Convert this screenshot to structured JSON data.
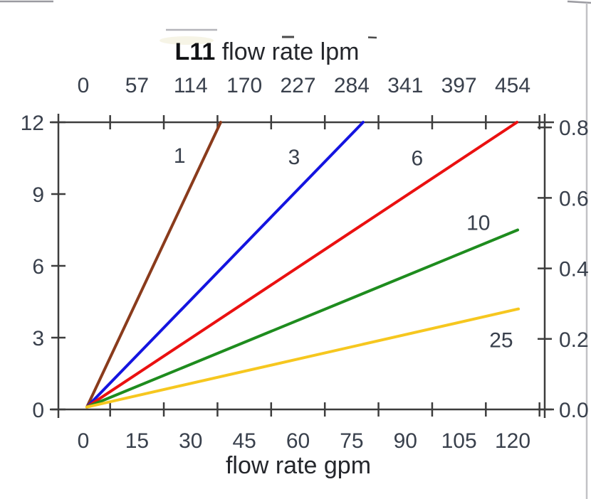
{
  "page": {
    "background": "#ffffff"
  },
  "colors": {
    "axis": "#3d3d3d",
    "tick_text": "#39404c",
    "title_model": "#101114",
    "title_text": "#24262b",
    "page_border": "#c2c2c6",
    "artifact_line": "#9a9aa0",
    "artifact_dash": "#4a4a4a"
  },
  "chart_data": {
    "type": "line",
    "title": {
      "model": "L11",
      "text": " flow rate lpm"
    },
    "axes": {
      "top": {
        "unit": "lpm",
        "tick_labels": [
          "0",
          "57",
          "114",
          "170",
          "227",
          "284",
          "341",
          "397",
          "454"
        ]
      },
      "bottom": {
        "title": "flow rate gpm",
        "unit": "gpm",
        "tick_labels": [
          "0",
          "15",
          "30",
          "45",
          "60",
          "75",
          "90",
          "105",
          "120"
        ],
        "range": [
          0,
          120
        ]
      },
      "left": {
        "tick_labels": [
          "12",
          "9",
          "6",
          "3",
          "0"
        ],
        "range": [
          0,
          12
        ]
      },
      "right": {
        "tick_labels": [
          "0.8",
          "0.6",
          "0.4",
          "0.2",
          "0.0"
        ],
        "range": [
          0,
          0.8
        ]
      }
    },
    "grid": false,
    "legend": "inline-labels",
    "series": [
      {
        "label": "1",
        "color": "#8a3b1c",
        "x": [
          1,
          38.4
        ],
        "y": [
          0.1,
          12
        ],
        "label_at": {
          "gpm": 26.9,
          "psi": 10.6
        }
      },
      {
        "label": "3",
        "color": "#1414e0",
        "x": [
          1,
          78.2
        ],
        "y": [
          0.1,
          12
        ],
        "label_at": {
          "gpm": 58.9,
          "psi": 10.55
        }
      },
      {
        "label": "6",
        "color": "#ea1010",
        "x": [
          1,
          121.2
        ],
        "y": [
          0.1,
          12
        ],
        "label_at": {
          "gpm": 93.3,
          "psi": 10.5
        }
      },
      {
        "label": "10",
        "color": "#1e8c1e",
        "x": [
          1,
          121.4
        ],
        "y": [
          0.1,
          7.5
        ],
        "label_at": {
          "gpm": 110.4,
          "psi": 7.8
        }
      },
      {
        "label": "25",
        "color": "#f6c71f",
        "x": [
          1,
          121.6
        ],
        "y": [
          0.1,
          4.2
        ],
        "label_at": {
          "gpm": 116.8,
          "psi": 2.9
        }
      }
    ]
  }
}
